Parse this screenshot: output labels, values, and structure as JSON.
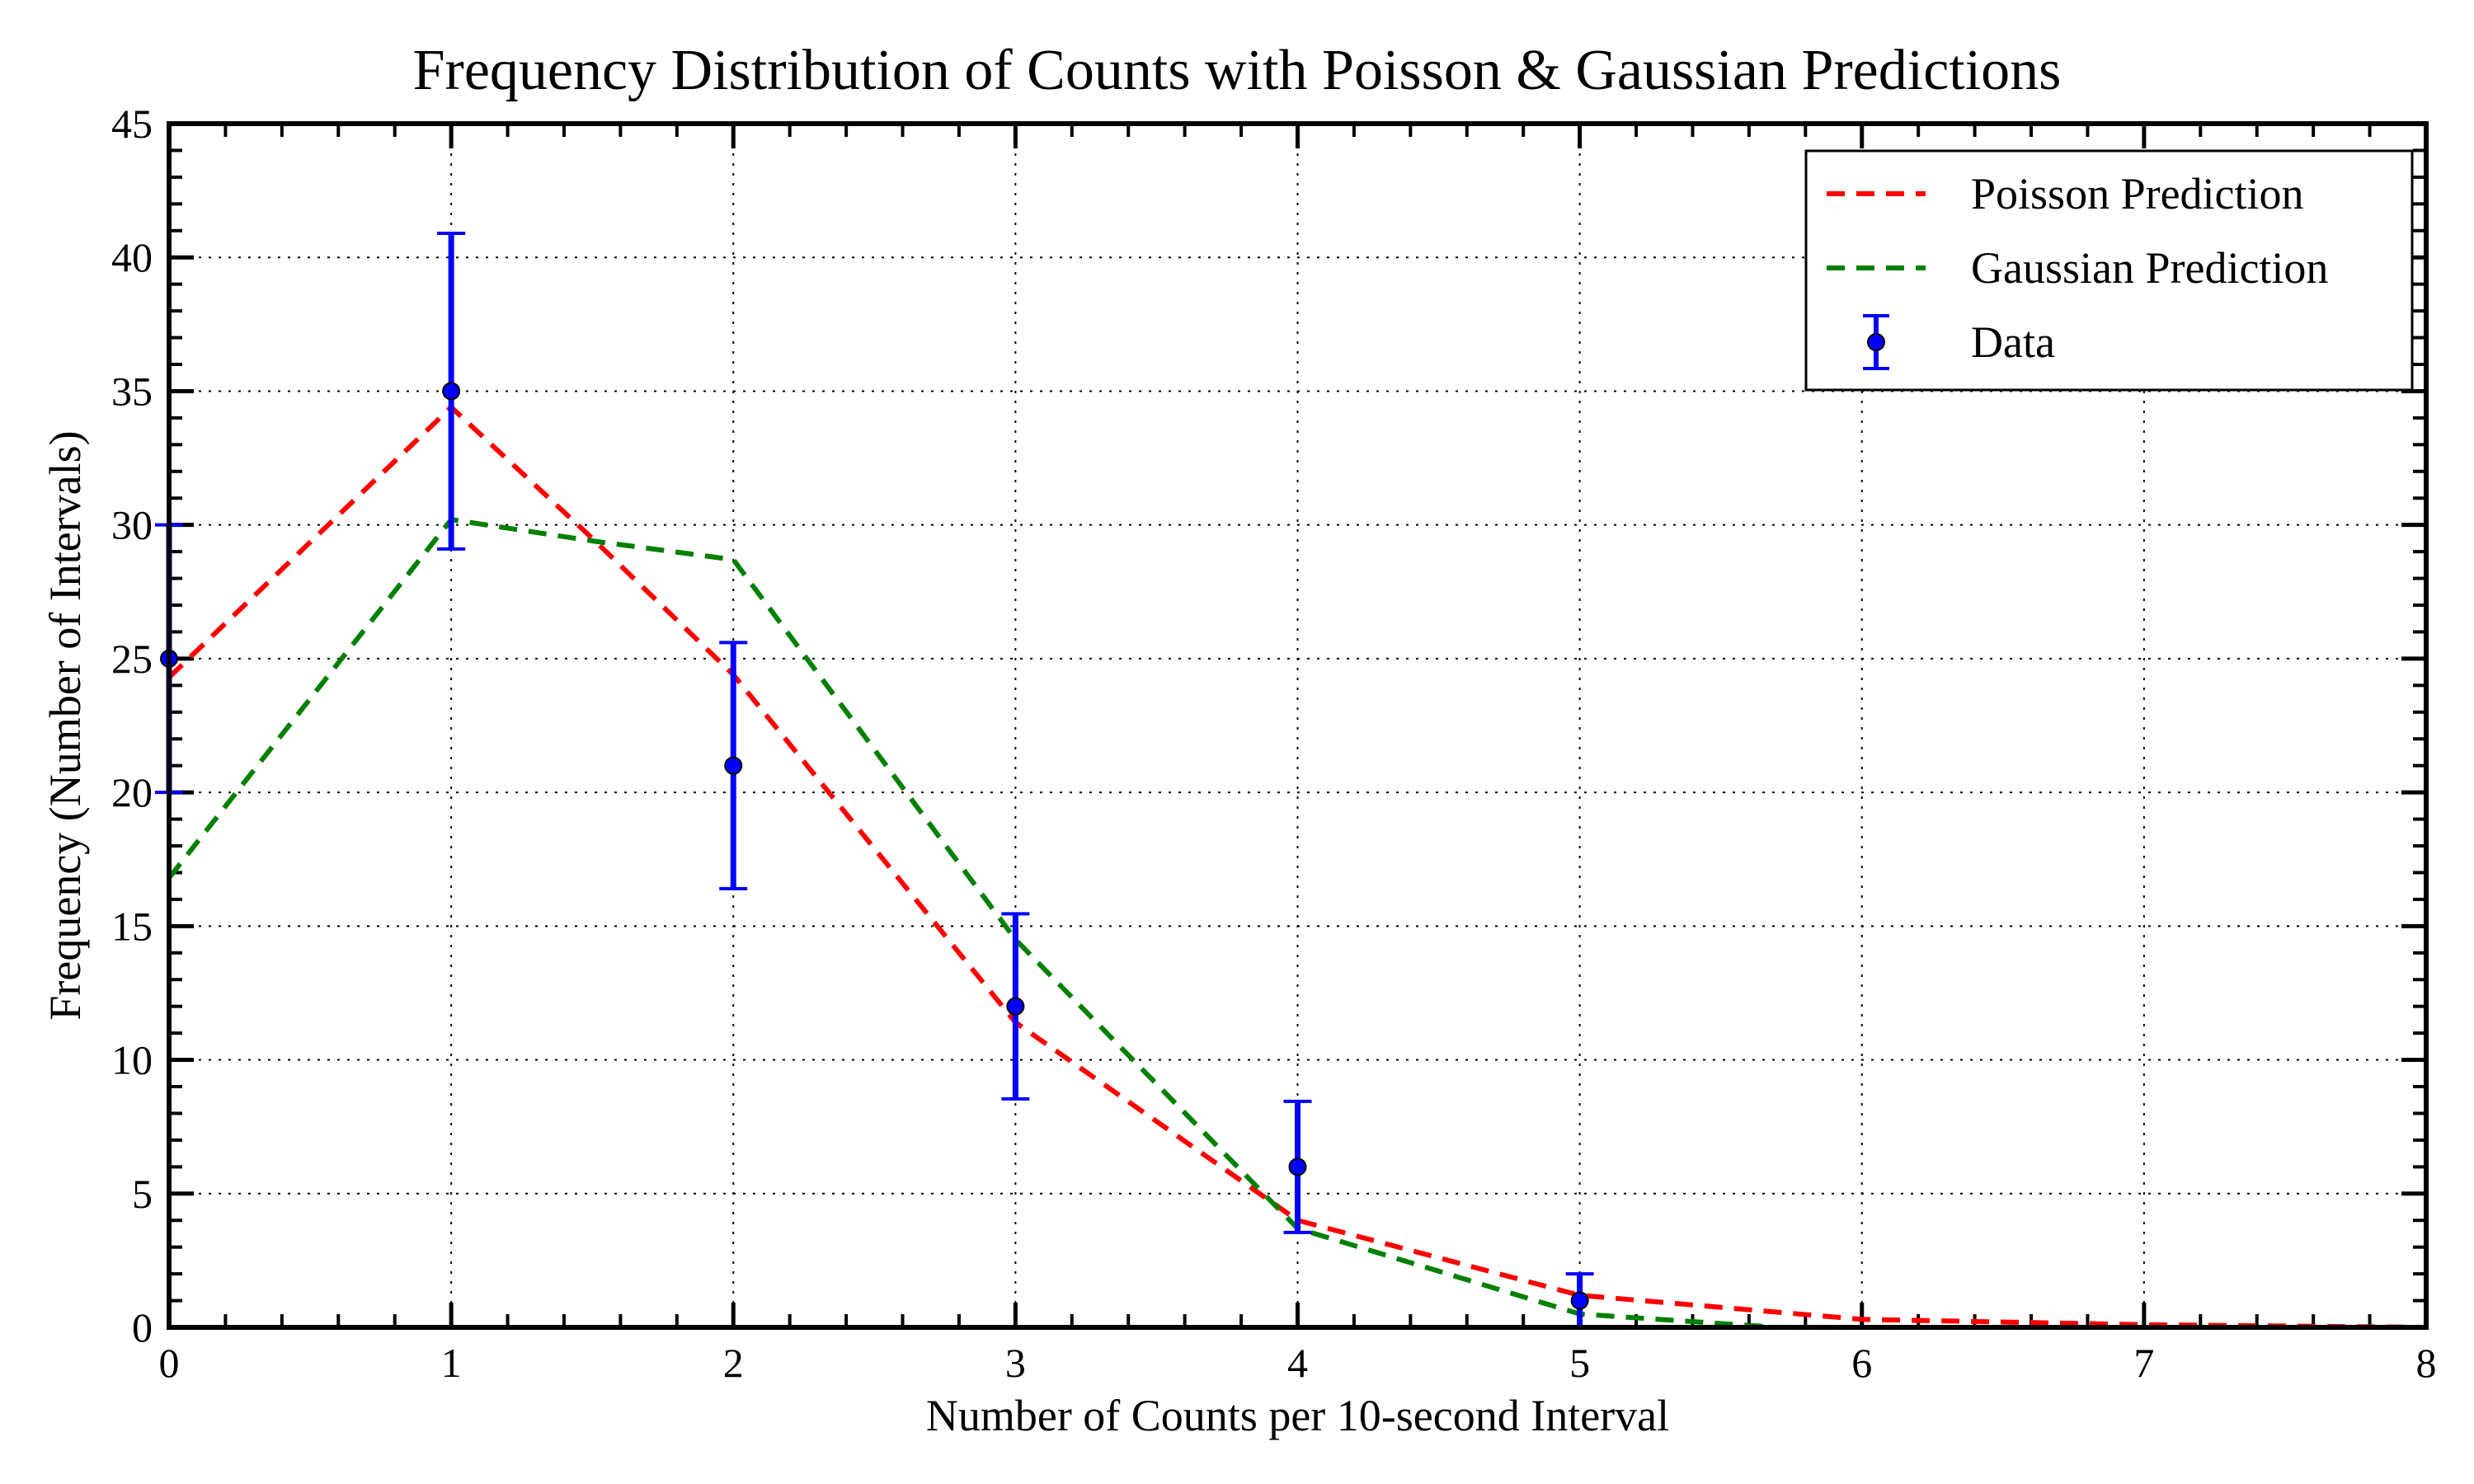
{
  "chart_data": {
    "type": "line",
    "title": "Frequency Distribution of Counts with Poisson & Gaussian Predictions",
    "xlabel": "Number of Counts per 10-second Interval",
    "ylabel": "Frequency (Number of Intervals)",
    "xlim": [
      0,
      8
    ],
    "ylim": [
      0,
      45
    ],
    "xticks": [
      0,
      1,
      2,
      3,
      4,
      5,
      6,
      7,
      8
    ],
    "yticks": [
      0,
      5,
      10,
      15,
      20,
      25,
      30,
      35,
      40,
      45
    ],
    "grid": true,
    "legend_position": "top-right",
    "series": [
      {
        "name": "Poisson Prediction",
        "style": "dashed",
        "color": "#ff0000",
        "points": [
          [
            0,
            24.3
          ],
          [
            1,
            34.4
          ],
          [
            1.5,
            29.5
          ],
          [
            2,
            24.4
          ],
          [
            3,
            11.4
          ],
          [
            4,
            4.0
          ],
          [
            5,
            1.2
          ],
          [
            6,
            0.3
          ],
          [
            7,
            0.1
          ],
          [
            8,
            0.0
          ]
        ]
      },
      {
        "name": "Gaussian Prediction",
        "style": "dashed",
        "color": "#008000",
        "points": [
          [
            0,
            16.8
          ],
          [
            1,
            30.2
          ],
          [
            1.5,
            29.4
          ],
          [
            2,
            28.7
          ],
          [
            3,
            14.5
          ],
          [
            4,
            3.7
          ],
          [
            5,
            0.5
          ],
          [
            5.7,
            0.0
          ]
        ]
      },
      {
        "name": "Data",
        "style": "errorbar",
        "color": "#0000ff",
        "points": [
          {
            "x": 0,
            "y": 25,
            "err": 5.0
          },
          {
            "x": 1,
            "y": 35,
            "err": 5.9
          },
          {
            "x": 2,
            "y": 21,
            "err": 4.6
          },
          {
            "x": 3,
            "y": 12,
            "err": 3.46
          },
          {
            "x": 4,
            "y": 6,
            "err": 2.45
          },
          {
            "x": 5,
            "y": 1,
            "err": 1.0
          }
        ]
      }
    ]
  }
}
